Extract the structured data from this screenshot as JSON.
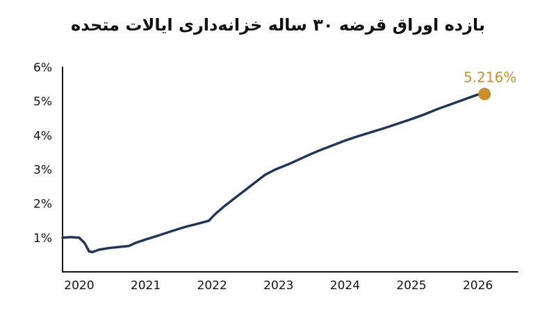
{
  "chart_data": {
    "type": "line",
    "title": "بازده اوراق قرضه ۳۰ ساله خزانه‌داری ایالات متحده",
    "xlabel": "",
    "ylabel": "",
    "xlim": [
      2019.75,
      2026.6
    ],
    "ylim": [
      0,
      6
    ],
    "x_ticks": [
      2020,
      2021,
      2022,
      2023,
      2024,
      2025,
      2026
    ],
    "x_tick_labels": [
      "2020",
      "2021",
      "2022",
      "2023",
      "2024",
      "2025",
      "2026"
    ],
    "y_ticks": [
      1,
      2,
      3,
      4,
      5,
      6
    ],
    "y_tick_labels": [
      "1%",
      "2%",
      "3%",
      "4%",
      "5%",
      "6%"
    ],
    "grid": false,
    "line_color": "#1f3560",
    "highlight_color": "#c8902a",
    "series": [
      {
        "x": [
          2019.75,
          2019.87,
          2020.0,
          2020.08,
          2020.15,
          2020.2,
          2020.3,
          2020.45,
          2020.6,
          2020.75,
          2020.85,
          2021.0,
          2021.2,
          2021.4,
          2021.6,
          2021.8,
          2021.95,
          2022.05,
          2022.2,
          2022.4,
          2022.6,
          2022.8,
          2022.95,
          2023.2,
          2023.4,
          2023.6,
          2023.8,
          2024.0,
          2024.2,
          2024.4,
          2024.6,
          2024.8,
          2025.0,
          2025.2,
          2025.4,
          2025.6,
          2025.8,
          2026.0,
          2026.1
        ],
        "y": [
          1.0,
          1.02,
          1.0,
          0.85,
          0.6,
          0.58,
          0.65,
          0.7,
          0.73,
          0.76,
          0.85,
          0.95,
          1.07,
          1.2,
          1.32,
          1.42,
          1.5,
          1.7,
          1.95,
          2.25,
          2.55,
          2.85,
          3.0,
          3.2,
          3.38,
          3.55,
          3.7,
          3.85,
          3.98,
          4.1,
          4.22,
          4.35,
          4.48,
          4.62,
          4.78,
          4.92,
          5.06,
          5.2,
          5.216
        ]
      }
    ],
    "highlight": {
      "x": 2026.1,
      "y": 5.216,
      "label": "5.216%"
    }
  }
}
